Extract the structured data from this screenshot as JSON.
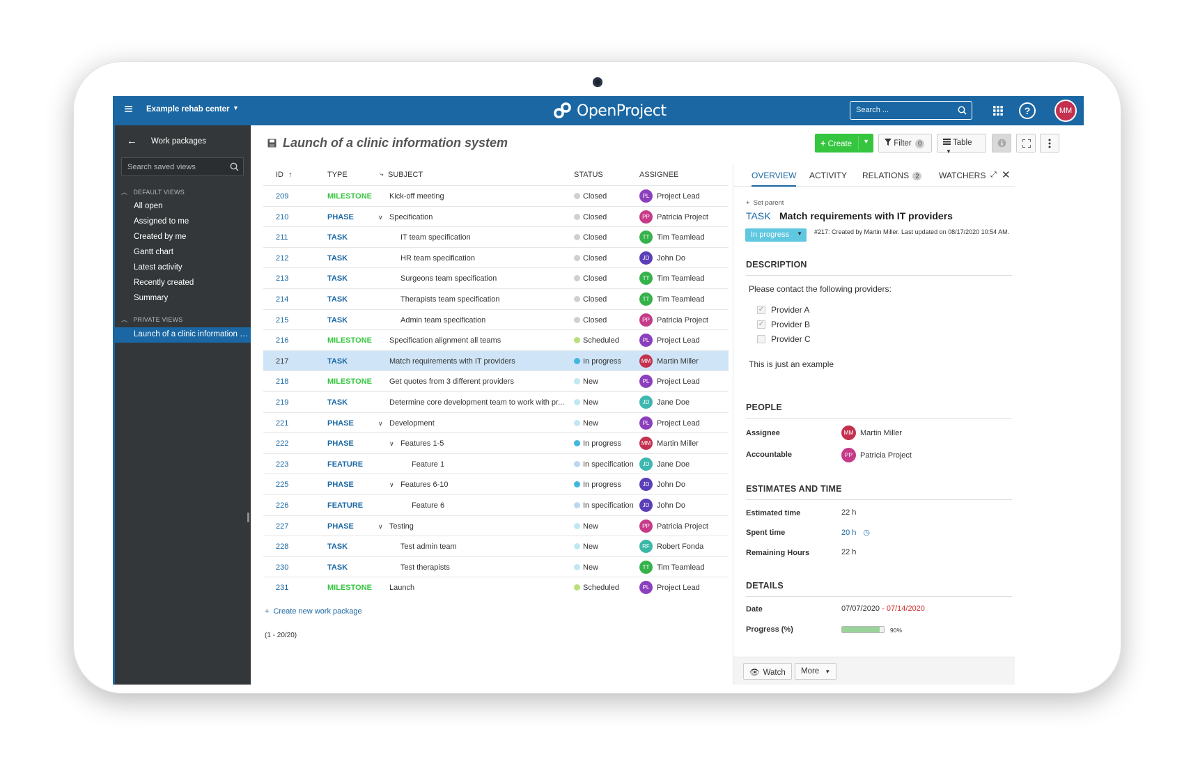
{
  "header": {
    "project": "Example rehab center",
    "logo": "OpenProject",
    "search_placeholder": "Search ...",
    "user_initials": "MM",
    "help": "?"
  },
  "sidebar": {
    "title": "Work packages",
    "search_placeholder": "Search saved views",
    "default_label": "DEFAULT VIEWS",
    "default_items": [
      "All open",
      "Assigned to me",
      "Created by me",
      "Gantt chart",
      "Latest activity",
      "Recently created",
      "Summary"
    ],
    "private_label": "PRIVATE VIEWS",
    "private_items": [
      "Launch of a clinic information system"
    ]
  },
  "main": {
    "title": "Launch of a clinic information system",
    "create_label": "Create",
    "filter_label": "Filter",
    "filter_count": "0",
    "table_label": "Table"
  },
  "table": {
    "columns": [
      "ID",
      "TYPE",
      "SUBJECT",
      "STATUS",
      "ASSIGNEE"
    ],
    "rows": [
      {
        "id": "209",
        "type": "MILESTONE",
        "subject": "Kick-off meeting",
        "status": "Closed",
        "initials": "PL",
        "assignee": "Project Lead"
      },
      {
        "id": "210",
        "type": "PHASE",
        "subject": "Specification",
        "status": "Closed",
        "initials": "PP",
        "assignee": "Patricia Project"
      },
      {
        "id": "211",
        "type": "TASK",
        "subject": "IT team specification",
        "status": "Closed",
        "initials": "TT",
        "assignee": "Tim Teamlead"
      },
      {
        "id": "212",
        "type": "TASK",
        "subject": "HR team specification",
        "status": "Closed",
        "initials": "JD",
        "assignee": "John Do"
      },
      {
        "id": "213",
        "type": "TASK",
        "subject": "Surgeons team specification",
        "status": "Closed",
        "initials": "TT",
        "assignee": "Tim Teamlead"
      },
      {
        "id": "214",
        "type": "TASK",
        "subject": "Therapists team specification",
        "status": "Closed",
        "initials": "TT",
        "assignee": "Tim Teamlead"
      },
      {
        "id": "215",
        "type": "TASK",
        "subject": "Admin team specification",
        "status": "Closed",
        "initials": "PP",
        "assignee": "Patricia Project"
      },
      {
        "id": "216",
        "type": "MILESTONE",
        "subject": "Specification alignment all teams",
        "status": "Scheduled",
        "initials": "PL",
        "assignee": "Project Lead"
      },
      {
        "id": "217",
        "type": "TASK",
        "subject": "Match requirements with IT providers",
        "status": "In progress",
        "initials": "MM",
        "assignee": "Martin Miller"
      },
      {
        "id": "218",
        "type": "MILESTONE",
        "subject": "Get quotes from 3 different providers",
        "status": "New",
        "initials": "PL",
        "assignee": "Project Lead"
      },
      {
        "id": "219",
        "type": "TASK",
        "subject": "Determine core development team to work with pr...",
        "status": "New",
        "initials": "JD",
        "assignee": "Jane Doe"
      },
      {
        "id": "221",
        "type": "PHASE",
        "subject": "Development",
        "status": "New",
        "initials": "PL",
        "assignee": "Project Lead"
      },
      {
        "id": "222",
        "type": "PHASE",
        "subject": "Features 1-5",
        "status": "In progress",
        "initials": "MM",
        "assignee": "Martin Miller"
      },
      {
        "id": "223",
        "type": "FEATURE",
        "subject": "Feature 1",
        "status": "In specification",
        "initials": "JD",
        "assignee": "Jane Doe"
      },
      {
        "id": "225",
        "type": "PHASE",
        "subject": "Features 6-10",
        "status": "In progress",
        "initials": "JD",
        "assignee": "John Do"
      },
      {
        "id": "226",
        "type": "FEATURE",
        "subject": "Feature 6",
        "status": "In specification",
        "initials": "JD",
        "assignee": "John Do"
      },
      {
        "id": "227",
        "type": "PHASE",
        "subject": "Testing",
        "status": "New",
        "initials": "PP",
        "assignee": "Patricia Project"
      },
      {
        "id": "228",
        "type": "TASK",
        "subject": "Test admin team",
        "status": "New",
        "initials": "RF",
        "assignee": "Robert Fonda"
      },
      {
        "id": "230",
        "type": "TASK",
        "subject": "Test therapists",
        "status": "New",
        "initials": "TT",
        "assignee": "Tim Teamlead"
      },
      {
        "id": "231",
        "type": "MILESTONE",
        "subject": "Launch",
        "status": "Scheduled",
        "initials": "PL",
        "assignee": "Project Lead"
      }
    ],
    "create_link": "Create new work package",
    "pager": "(1 - 20/20)"
  },
  "details": {
    "tabs": [
      "OVERVIEW",
      "ACTIVITY",
      "RELATIONS",
      "WATCHERS"
    ],
    "relations_count": "2",
    "set_parent": "Set parent",
    "type": "TASK",
    "subject": "Match requirements with IT providers",
    "status": "In progress",
    "meta": "#217: Created by Martin Miller. Last updated on 08/17/2020 10:54 AM.",
    "description_head": "DESCRIPTION",
    "description_intro": "Please contact the following providers:",
    "providers": [
      {
        "label": "Provider A",
        "checked": true
      },
      {
        "label": "Provider B",
        "checked": true
      },
      {
        "label": "Provider C",
        "checked": false
      }
    ],
    "description_outro": "This is just an example",
    "people_head": "PEOPLE",
    "assignee_label": "Assignee",
    "assignee_initials": "MM",
    "assignee_name": "Martin Miller",
    "accountable_label": "Accountable",
    "accountable_initials": "PP",
    "accountable_name": "Patricia Project",
    "estimates_head": "ESTIMATES AND TIME",
    "estimated_label": "Estimated time",
    "estimated_value": "22 h",
    "spent_label": "Spent time",
    "spent_value": "20 h",
    "remaining_label": "Remaining Hours",
    "remaining_value": "22 h",
    "details_head": "DETAILS",
    "date_label": "Date",
    "date_start": "07/07/2020",
    "date_sep": "-",
    "date_end": "07/14/2020",
    "progress_label": "Progress (%)",
    "progress_value": 0.9,
    "progress_text": "90%",
    "watch_label": "Watch",
    "more_label": "More"
  },
  "colors": {
    "header": "#1a67a3",
    "sidebar": "#333739",
    "create_button": "#35c53f",
    "milestone": "#35c53f",
    "type_blue": "#1a67a3",
    "selected_row": "#cfe5f7",
    "status_closed": "#d0d0d0",
    "status_scheduled": "#b7e07a",
    "status_in_progress": "#3fb8e0",
    "status_new": "#bfe8f2",
    "status_in_specification": "#bcd8f0",
    "avatar_pl": "#8b3fbd",
    "avatar_pp": "#c63a88",
    "avatar_tt": "#35b24a",
    "avatar_jd_john": "#5b3fb8",
    "avatar_jd_jane": "#3db7b0",
    "avatar_mm": "#c3314f",
    "avatar_rf": "#3bb8a8",
    "due_date": "#d32f2f"
  }
}
